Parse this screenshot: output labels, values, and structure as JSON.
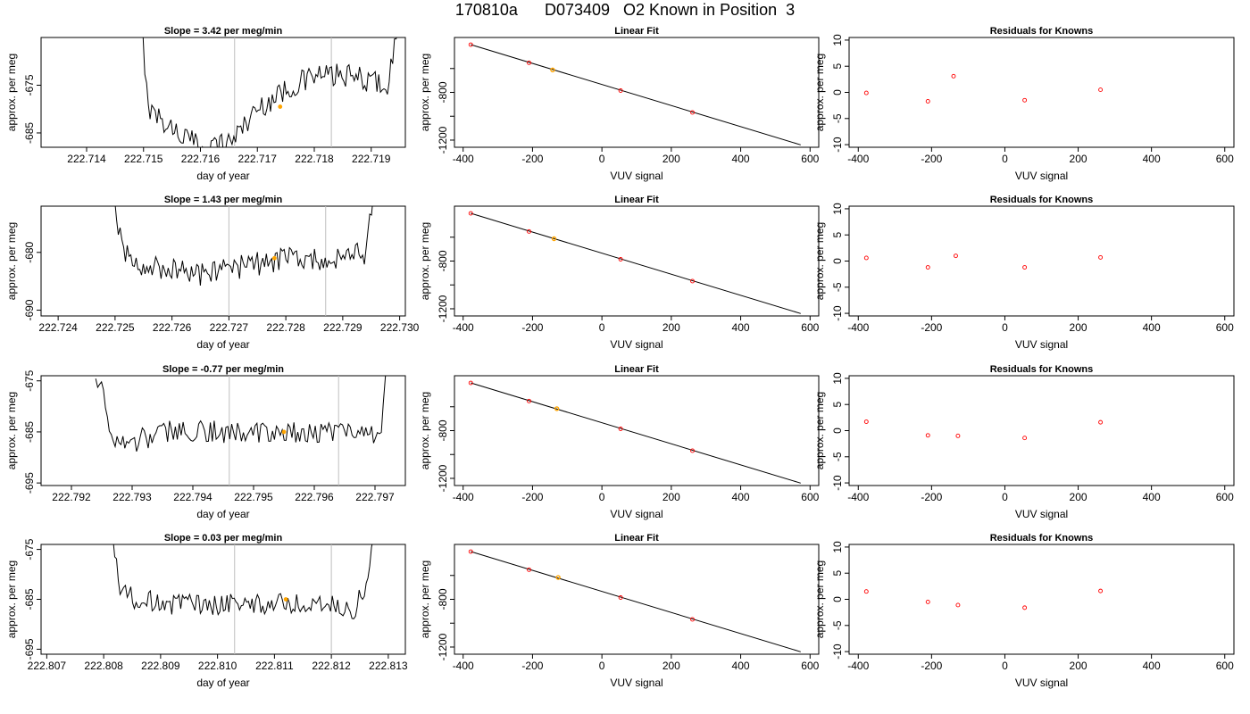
{
  "figure": {
    "title": "170810a      D073409   O2 Known in Position  3",
    "colors": {
      "line": "#000000",
      "point": "#ff0000",
      "highlight": "#ffa500",
      "guide": "#bebebe"
    }
  },
  "chart_data": [
    {
      "type": "line",
      "row": 0,
      "col": 0,
      "title": "Slope =  3.42  per meg/min",
      "xlabel": "day of year",
      "ylabel": "approx. per meg",
      "xlim": [
        222.7132,
        222.7196
      ],
      "ylim": [
        -688,
        -665
      ],
      "xticks": [
        222.714,
        222.715,
        222.716,
        222.717,
        222.718,
        222.719
      ],
      "xtick_labels": [
        "222.714",
        "222.715",
        "222.716",
        "222.717",
        "222.718",
        "222.719"
      ],
      "yticks": [
        -675,
        -685
      ],
      "ytick_labels": [
        "-675",
        "-685"
      ],
      "vlines": [
        222.7166,
        222.7183
      ],
      "highlight_point": [
        222.7174,
        -679.5
      ],
      "trace_start": 222.7149,
      "trace_end": 222.7195,
      "trace_anchors": [
        [
          222.7149,
          -655
        ],
        [
          222.7151,
          -680
        ],
        [
          222.7155,
          -684
        ],
        [
          222.716,
          -688
        ],
        [
          222.7165,
          -687
        ],
        [
          222.717,
          -680
        ],
        [
          222.7175,
          -676
        ],
        [
          222.718,
          -673
        ],
        [
          222.7185,
          -673
        ],
        [
          222.719,
          -674
        ],
        [
          222.7193,
          -675
        ],
        [
          222.7195,
          -660
        ]
      ],
      "trace_noise": 2.5
    },
    {
      "type": "scatter",
      "row": 0,
      "col": 1,
      "title": "Linear Fit",
      "xlabel": "VUV signal",
      "ylabel": "approx. per meg",
      "xlim": [
        -425,
        625
      ],
      "ylim": [
        -1260,
        -340
      ],
      "xticks": [
        -400,
        -200,
        0,
        200,
        400,
        600
      ],
      "xtick_labels": [
        "-400",
        "-200",
        "0",
        "200",
        "400",
        "600"
      ],
      "yticks": [
        -800,
        -1200
      ],
      "ytick_labels": [
        "-800",
        "-1200"
      ],
      "minor_yticks": [
        -600,
        -1000
      ],
      "fit_line": [
        [
          -378,
          -400
        ],
        [
          573,
          -1240
        ]
      ],
      "points": [
        [
          -378,
          -400
        ],
        [
          -210,
          -552
        ],
        [
          54,
          -785
        ],
        [
          261,
          -968
        ]
      ],
      "highlight_point": [
        -142,
        -612
      ]
    },
    {
      "type": "scatter",
      "row": 0,
      "col": 2,
      "title": "Residuals for Knowns",
      "xlabel": "VUV signal",
      "ylabel": "approx. per meg",
      "xlim": [
        -425,
        625
      ],
      "ylim": [
        -10.5,
        10.5
      ],
      "xticks": [
        -400,
        -200,
        0,
        200,
        400,
        600
      ],
      "xtick_labels": [
        "-400",
        "-200",
        "0",
        "200",
        "400",
        "600"
      ],
      "yticks": [
        10,
        5,
        0,
        -5,
        -10
      ],
      "ytick_labels": [
        "10",
        "5",
        "0",
        "-5",
        "-10"
      ],
      "points": [
        [
          -378,
          -0.1
        ],
        [
          -210,
          -1.7
        ],
        [
          -140,
          3.1
        ],
        [
          54,
          -1.5
        ],
        [
          261,
          0.5
        ]
      ]
    },
    {
      "type": "line",
      "row": 1,
      "col": 0,
      "title": "Slope =  1.43  per meg/min",
      "xlabel": "day of year",
      "ylabel": "approx. per meg",
      "xlim": [
        222.7237,
        222.7301
      ],
      "ylim": [
        -691,
        -672
      ],
      "xticks": [
        222.724,
        222.725,
        222.726,
        222.727,
        222.728,
        222.729,
        222.73
      ],
      "xtick_labels": [
        "222.724",
        "222.725",
        "222.726",
        "222.727",
        "222.728",
        "222.729",
        "222.730"
      ],
      "yticks": [
        -680,
        -690
      ],
      "ytick_labels": [
        "-680",
        "-690"
      ],
      "vlines": [
        222.727,
        222.7287
      ],
      "highlight_point": [
        222.7278,
        -681
      ],
      "trace_start": 222.7249,
      "trace_end": 222.7296,
      "trace_anchors": [
        [
          222.7249,
          -665
        ],
        [
          222.7251,
          -678
        ],
        [
          222.7253,
          -682
        ],
        [
          222.726,
          -683
        ],
        [
          222.7265,
          -684
        ],
        [
          222.727,
          -683
        ],
        [
          222.7275,
          -682
        ],
        [
          222.728,
          -681
        ],
        [
          222.7285,
          -681
        ],
        [
          222.729,
          -681
        ],
        [
          222.7294,
          -680
        ],
        [
          222.7296,
          -665
        ]
      ],
      "trace_noise": 2.2
    },
    {
      "type": "scatter",
      "row": 1,
      "col": 1,
      "title": "Linear Fit",
      "xlabel": "VUV signal",
      "ylabel": "approx. per meg",
      "xlim": [
        -425,
        625
      ],
      "ylim": [
        -1260,
        -340
      ],
      "xticks": [
        -400,
        -200,
        0,
        200,
        400,
        600
      ],
      "xtick_labels": [
        "-400",
        "-200",
        "0",
        "200",
        "400",
        "600"
      ],
      "yticks": [
        -800,
        -1200
      ],
      "ytick_labels": [
        "-800",
        "-1200"
      ],
      "minor_yticks": [
        -600,
        -1000
      ],
      "fit_line": [
        [
          -378,
          -400
        ],
        [
          573,
          -1240
        ]
      ],
      "points": [
        [
          -378,
          -400
        ],
        [
          -210,
          -552
        ],
        [
          54,
          -785
        ],
        [
          261,
          -968
        ]
      ],
      "highlight_point": [
        -138,
        -613
      ]
    },
    {
      "type": "scatter",
      "row": 1,
      "col": 2,
      "title": "Residuals for Knowns",
      "xlabel": "VUV signal",
      "ylabel": "approx. per meg",
      "xlim": [
        -425,
        625
      ],
      "ylim": [
        -10.5,
        10.5
      ],
      "xticks": [
        -400,
        -200,
        0,
        200,
        400,
        600
      ],
      "xtick_labels": [
        "-400",
        "-200",
        "0",
        "200",
        "400",
        "600"
      ],
      "yticks": [
        10,
        5,
        0,
        -5,
        -10
      ],
      "ytick_labels": [
        "10",
        "5",
        "0",
        "-5",
        "-10"
      ],
      "points": [
        [
          -378,
          0.6
        ],
        [
          -210,
          -1.2
        ],
        [
          -134,
          1.0
        ],
        [
          54,
          -1.2
        ],
        [
          261,
          0.7
        ]
      ]
    },
    {
      "type": "line",
      "row": 2,
      "col": 0,
      "title": "Slope =  -0.77  per meg/min",
      "xlabel": "day of year",
      "ylabel": "approx. per meg",
      "xlim": [
        222.7915,
        222.7975
      ],
      "ylim": [
        -695.5,
        -674
      ],
      "xticks": [
        222.792,
        222.793,
        222.794,
        222.795,
        222.796,
        222.797
      ],
      "xtick_labels": [
        "222.792",
        "222.793",
        "222.794",
        "222.795",
        "222.796",
        "222.797"
      ],
      "yticks": [
        -675,
        -685,
        -695
      ],
      "ytick_labels": [
        "-675",
        "-685",
        "-695"
      ],
      "vlines": [
        222.7946,
        222.7964
      ],
      "highlight_point": [
        222.7955,
        -685
      ],
      "trace_start": 222.7924,
      "trace_end": 222.7972,
      "trace_anchors": [
        [
          222.7924,
          -675
        ],
        [
          222.7925,
          -677
        ],
        [
          222.7926,
          -684
        ],
        [
          222.7928,
          -688
        ],
        [
          222.7935,
          -685
        ],
        [
          222.7945,
          -685
        ],
        [
          222.7955,
          -685
        ],
        [
          222.7965,
          -685
        ],
        [
          222.7969,
          -686
        ],
        [
          222.7971,
          -684
        ],
        [
          222.7972,
          -670
        ]
      ],
      "trace_noise": 2.3
    },
    {
      "type": "scatter",
      "row": 2,
      "col": 1,
      "title": "Linear Fit",
      "xlabel": "VUV signal",
      "ylabel": "approx. per meg",
      "xlim": [
        -425,
        625
      ],
      "ylim": [
        -1260,
        -340
      ],
      "xticks": [
        -400,
        -200,
        0,
        200,
        400,
        600
      ],
      "xtick_labels": [
        "-400",
        "-200",
        "0",
        "200",
        "400",
        "600"
      ],
      "yticks": [
        -800,
        -1200
      ],
      "ytick_labels": [
        "-800",
        "-1200"
      ],
      "minor_yticks": [
        -600,
        -1000
      ],
      "fit_line": [
        [
          -378,
          -400
        ],
        [
          573,
          -1240
        ]
      ],
      "points": [
        [
          -378,
          -400
        ],
        [
          -210,
          -552
        ],
        [
          54,
          -785
        ],
        [
          261,
          -968
        ]
      ],
      "highlight_point": [
        -130,
        -616
      ]
    },
    {
      "type": "scatter",
      "row": 2,
      "col": 2,
      "title": "Residuals for Knowns",
      "xlabel": "VUV signal",
      "ylabel": "approx. per meg",
      "xlim": [
        -425,
        625
      ],
      "ylim": [
        -10.5,
        10.5
      ],
      "xticks": [
        -400,
        -200,
        0,
        200,
        400,
        600
      ],
      "xtick_labels": [
        "-400",
        "-200",
        "0",
        "200",
        "400",
        "600"
      ],
      "yticks": [
        10,
        5,
        0,
        -5,
        -10
      ],
      "ytick_labels": [
        "10",
        "5",
        "0",
        "-5",
        "-10"
      ],
      "points": [
        [
          -378,
          1.7
        ],
        [
          -210,
          -0.9
        ],
        [
          -128,
          -1.0
        ],
        [
          54,
          -1.4
        ],
        [
          261,
          1.6
        ]
      ]
    },
    {
      "type": "line",
      "row": 3,
      "col": 0,
      "title": "Slope =  0.03  per meg/min",
      "xlabel": "day of year",
      "ylabel": "approx. per meg",
      "xlim": [
        222.8069,
        222.8133
      ],
      "ylim": [
        -696,
        -674
      ],
      "xticks": [
        222.807,
        222.808,
        222.809,
        222.81,
        222.811,
        222.812,
        222.813
      ],
      "xtick_labels": [
        "222.807",
        "222.808",
        "222.809",
        "222.810",
        "222.811",
        "222.812",
        "222.813"
      ],
      "yticks": [
        -675,
        -685,
        -695
      ],
      "ytick_labels": [
        "-675",
        "-685",
        "-695"
      ],
      "vlines": [
        222.8103,
        222.812
      ],
      "highlight_point": [
        222.8112,
        -685
      ],
      "trace_start": 222.8081,
      "trace_end": 222.8128,
      "trace_anchors": [
        [
          222.8081,
          -668
        ],
        [
          222.8082,
          -676
        ],
        [
          222.8083,
          -684
        ],
        [
          222.809,
          -686
        ],
        [
          222.81,
          -686
        ],
        [
          222.811,
          -686
        ],
        [
          222.812,
          -686
        ],
        [
          222.8124,
          -687
        ],
        [
          222.8126,
          -683
        ],
        [
          222.8128,
          -668
        ]
      ],
      "trace_noise": 2.2
    },
    {
      "type": "scatter",
      "row": 3,
      "col": 1,
      "title": "Linear Fit",
      "xlabel": "VUV signal",
      "ylabel": "approx. per meg",
      "xlim": [
        -425,
        625
      ],
      "ylim": [
        -1260,
        -340
      ],
      "xticks": [
        -400,
        -200,
        0,
        200,
        400,
        600
      ],
      "xtick_labels": [
        "-400",
        "-200",
        "0",
        "200",
        "400",
        "600"
      ],
      "yticks": [
        -800,
        -1200
      ],
      "ytick_labels": [
        "-800",
        "-1200"
      ],
      "minor_yticks": [
        -600,
        -1000
      ],
      "fit_line": [
        [
          -378,
          -400
        ],
        [
          573,
          -1240
        ]
      ],
      "points": [
        [
          -378,
          -400
        ],
        [
          -210,
          -552
        ],
        [
          54,
          -785
        ],
        [
          261,
          -968
        ]
      ],
      "highlight_point": [
        -126,
        -617
      ]
    },
    {
      "type": "scatter",
      "row": 3,
      "col": 2,
      "title": "Residuals for Knowns",
      "xlabel": "VUV signal",
      "ylabel": "approx. per meg",
      "xlim": [
        -425,
        625
      ],
      "ylim": [
        -10.5,
        10.5
      ],
      "xticks": [
        -400,
        -200,
        0,
        200,
        400,
        600
      ],
      "xtick_labels": [
        "-400",
        "-200",
        "0",
        "200",
        "400",
        "600"
      ],
      "yticks": [
        10,
        5,
        0,
        -5,
        -10
      ],
      "ytick_labels": [
        "10",
        "5",
        "0",
        "-5",
        "-10"
      ],
      "points": [
        [
          -378,
          1.5
        ],
        [
          -210,
          -0.5
        ],
        [
          -128,
          -1.1
        ],
        [
          54,
          -1.6
        ],
        [
          261,
          1.6
        ]
      ]
    }
  ]
}
